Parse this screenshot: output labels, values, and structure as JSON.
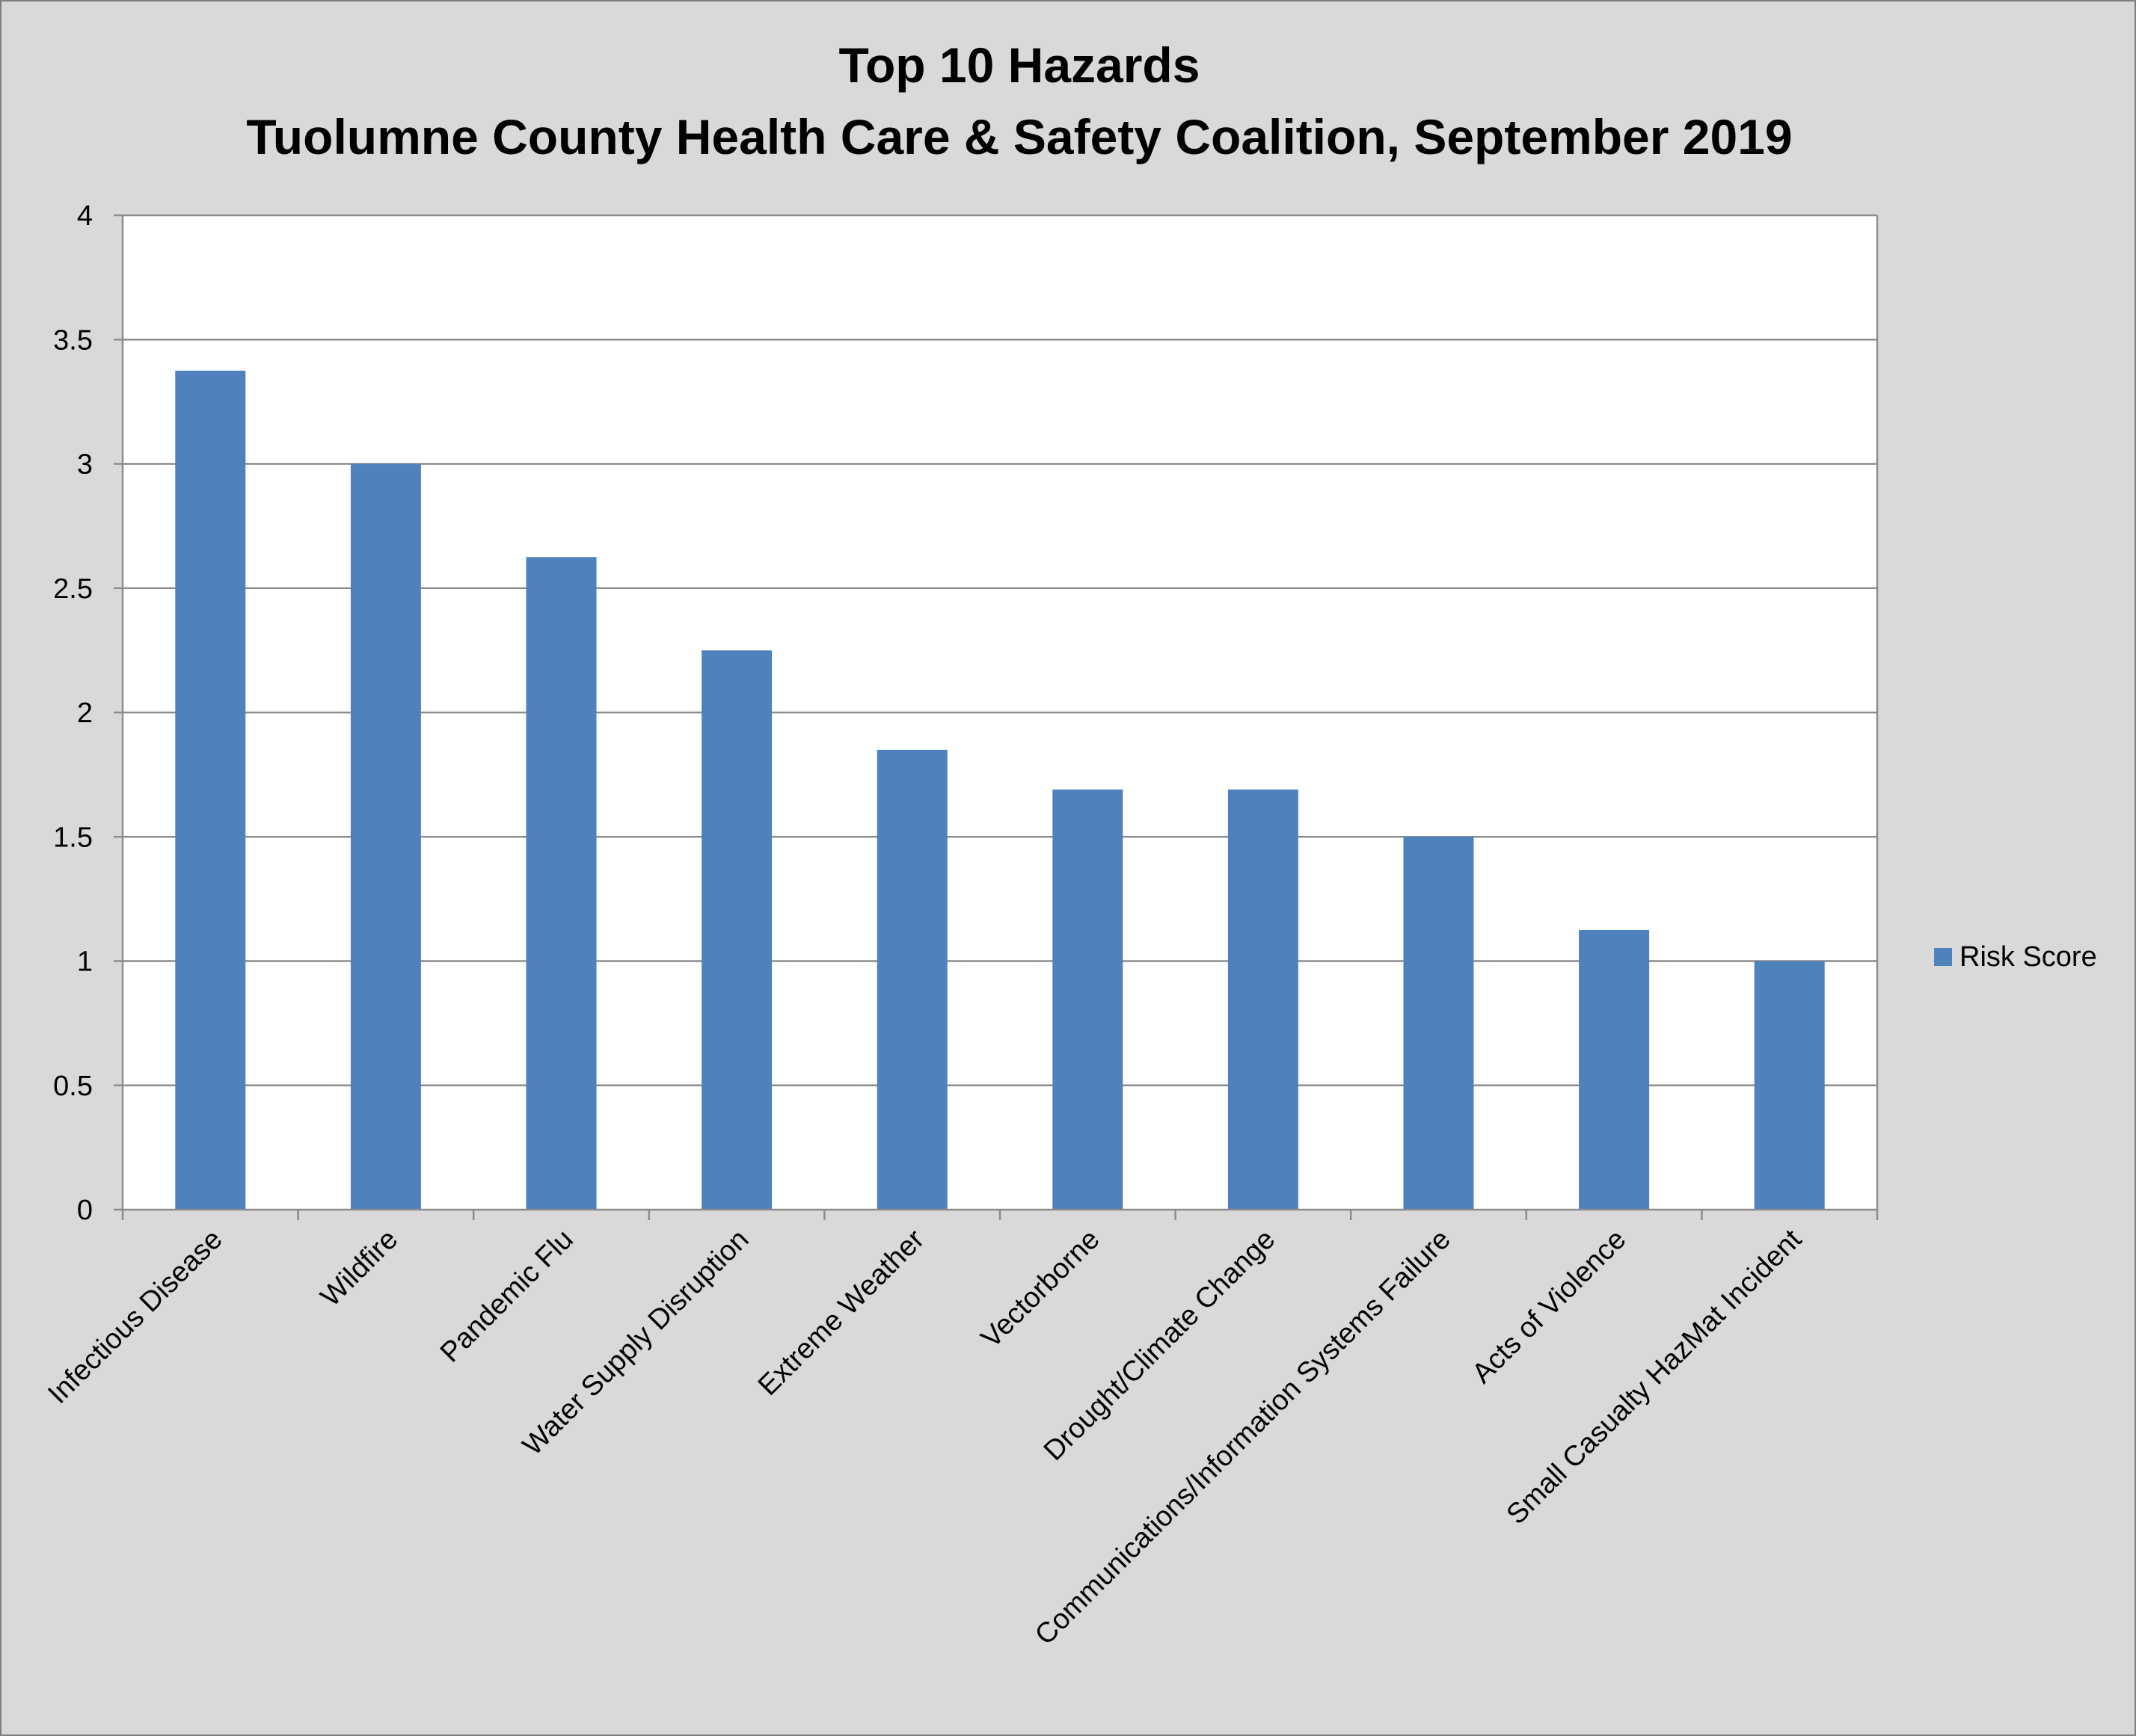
{
  "chart_data": {
    "type": "bar",
    "title": "Top 10 Hazards",
    "subtitle": "Tuolumne County Health Care & Safety Coalition, September 2019",
    "xlabel": "",
    "ylabel": "",
    "categories": [
      "Infectious Disease",
      "Wildfire",
      "Pandemic Flu",
      "Water Supply Disruption",
      "Extreme Weather",
      "Vectorborne",
      "Drought/Climate Change",
      "Communications/Information Systems Failure",
      "Acts of Violence",
      "Small Casualty HazMat Incident"
    ],
    "series": [
      {
        "name": "Risk Score",
        "values": [
          3.375,
          3.0,
          2.625,
          2.25,
          1.85,
          1.69,
          1.69,
          1.5,
          1.125,
          1.0
        ],
        "color": "#4f81bd"
      }
    ],
    "ylim": [
      0,
      4
    ],
    "yticks": [
      "0",
      "0.5",
      "1",
      "1.5",
      "2",
      "2.5",
      "3",
      "3.5",
      "4"
    ],
    "grid": true,
    "legend_position": "right"
  }
}
